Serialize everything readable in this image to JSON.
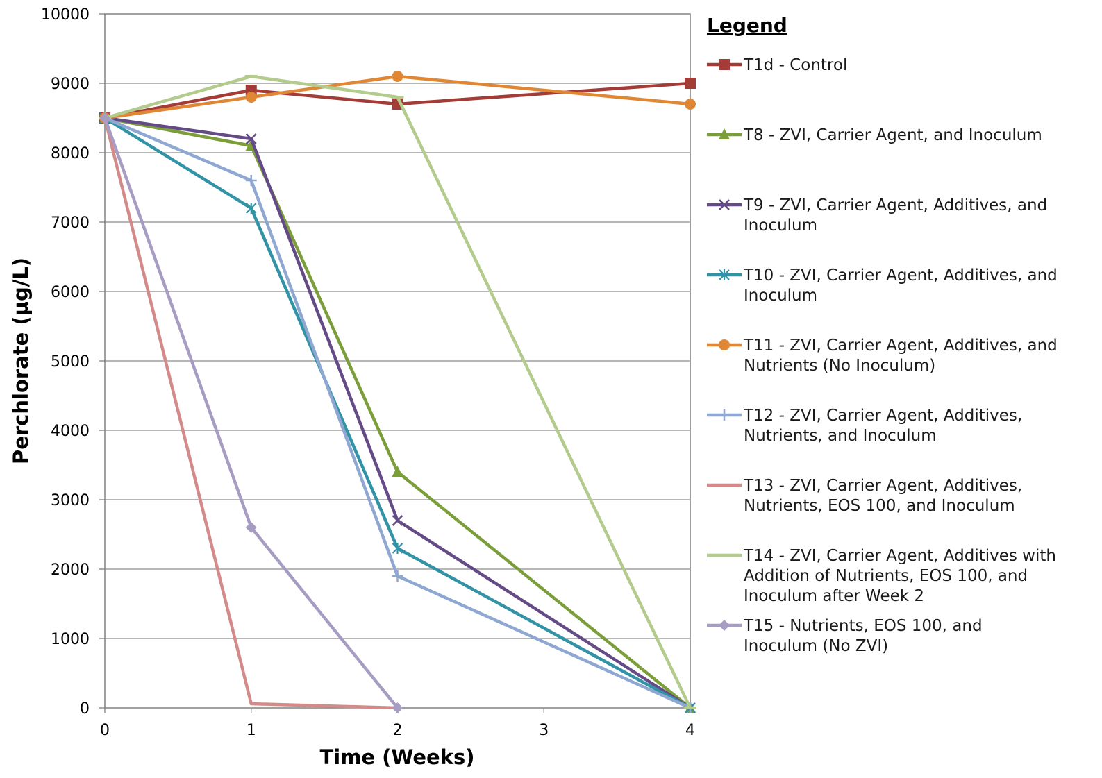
{
  "chart_data": {
    "type": "line",
    "xlabel": "Time (Weeks)",
    "ylabel": "Perchlorate (µg/L)",
    "xlim": [
      0,
      4
    ],
    "ylim": [
      0,
      10000
    ],
    "x_ticks": [
      "0",
      "1",
      "2",
      "3",
      "4"
    ],
    "y_ticks": [
      "0",
      "1000",
      "2000",
      "3000",
      "4000",
      "5000",
      "6000",
      "7000",
      "8000",
      "9000",
      "10000"
    ],
    "grid": "horizontal",
    "legend": {
      "title": "Legend",
      "placement": "right"
    },
    "series": [
      {
        "name": "T1d - Control",
        "label_lines": [
          "T1d - Control"
        ],
        "color": "#A33B36",
        "marker": "square",
        "points": [
          [
            0,
            8500
          ],
          [
            1,
            8900
          ],
          [
            2,
            8700
          ],
          [
            4,
            9000
          ]
        ]
      },
      {
        "name": "T8 - ZVI, Carrier Agent, and Inoculum",
        "label_lines": [
          "T8 - ZVI, Carrier Agent, and Inoculum"
        ],
        "color": "#7B9D3A",
        "marker": "triangle",
        "points": [
          [
            0,
            8500
          ],
          [
            1,
            8100
          ],
          [
            2,
            3400
          ],
          [
            4,
            0
          ]
        ]
      },
      {
        "name": "T9 - ZVI, Carrier Agent, Additives, and Inoculum",
        "label_lines": [
          "T9 - ZVI, Carrier Agent, Additives, and",
          "Inoculum"
        ],
        "color": "#644B86",
        "marker": "x",
        "points": [
          [
            0,
            8500
          ],
          [
            1,
            8200
          ],
          [
            2,
            2700
          ],
          [
            4,
            0
          ]
        ]
      },
      {
        "name": "T10 - ZVI, Carrier Agent, Additives, and Inoculum",
        "label_lines": [
          "T10 - ZVI, Carrier Agent, Additives, and",
          "Inoculum"
        ],
        "color": "#3292A6",
        "marker": "star",
        "points": [
          [
            0,
            8500
          ],
          [
            1,
            7200
          ],
          [
            2,
            2300
          ],
          [
            4,
            0
          ]
        ]
      },
      {
        "name": "T11 - ZVI, Carrier Agent, Additives, and Nutrients (No Inoculum)",
        "label_lines": [
          "T11 - ZVI, Carrier Agent, Additives, and",
          "Nutrients (No Inoculum)"
        ],
        "color": "#E08735",
        "marker": "circle",
        "points": [
          [
            0,
            8500
          ],
          [
            1,
            8800
          ],
          [
            2,
            9100
          ],
          [
            4,
            8700
          ]
        ]
      },
      {
        "name": "T12 - ZVI, Carrier Agent, Additives, Nutrients, and Inoculum",
        "label_lines": [
          "T12 - ZVI, Carrier Agent, Additives,",
          "Nutrients, and Inoculum"
        ],
        "color": "#8FA8D1",
        "marker": "plus",
        "points": [
          [
            0,
            8500
          ],
          [
            1,
            7600
          ],
          [
            2,
            1900
          ],
          [
            4,
            0
          ]
        ]
      },
      {
        "name": "T13 - ZVI, Carrier Agent, Additives, Nutrients, EOS 100, and Inoculum",
        "label_lines": [
          "T13 - ZVI, Carrier Agent, Additives,",
          "Nutrients, EOS 100, and Inoculum"
        ],
        "color": "#D38B89",
        "marker": "none",
        "points": [
          [
            0,
            8500
          ],
          [
            1,
            60
          ],
          [
            2,
            0
          ]
        ]
      },
      {
        "name": "T14 - ZVI, Carrier Agent, Additives with Addition of Nutrients, EOS 100, and Inoculum after Week 2",
        "label_lines": [
          "T14 - ZVI, Carrier Agent, Additives with",
          "Addition of Nutrients, EOS 100, and",
          "Inoculum after Week 2"
        ],
        "color": "#B3CB8D",
        "marker": "dash",
        "points": [
          [
            0,
            8500
          ],
          [
            1,
            9100
          ],
          [
            2,
            8800
          ],
          [
            4,
            0
          ]
        ]
      },
      {
        "name": "T15 - Nutrients, EOS 100, and Inoculum (No ZVI)",
        "label_lines": [
          "T15 - Nutrients, EOS 100, and",
          "Inoculum (No ZVI)"
        ],
        "color": "#A79DC2",
        "marker": "diamond",
        "points": [
          [
            0,
            8500
          ],
          [
            1,
            2600
          ],
          [
            2,
            0
          ]
        ]
      }
    ]
  }
}
